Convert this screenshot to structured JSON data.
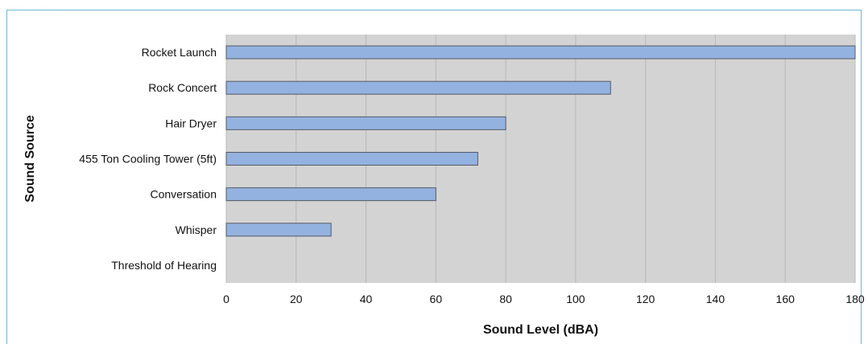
{
  "caption_fragment": "...............",
  "chart_data": {
    "type": "bar",
    "orientation": "horizontal",
    "categories": [
      "Rocket Launch",
      "Rock Concert",
      "Hair Dryer",
      "455 Ton Cooling Tower (5ft)",
      "Conversation",
      "Whisper",
      "Threshold of Hearing"
    ],
    "values": [
      180,
      110,
      80,
      72,
      60,
      30,
      0
    ],
    "xlabel": "Sound Level (dBA)",
    "ylabel": "Sound Source",
    "xlim": [
      0,
      180
    ],
    "xticks": [
      0,
      20,
      40,
      60,
      80,
      100,
      120,
      140,
      160,
      180
    ],
    "grid": true,
    "colors": {
      "bar_fill": "#94b2e0",
      "bar_stroke": "#555a66",
      "plot_bg": "#d3d3d3",
      "grid": "#b8b8b8",
      "frame": "#6fb6d6"
    }
  }
}
